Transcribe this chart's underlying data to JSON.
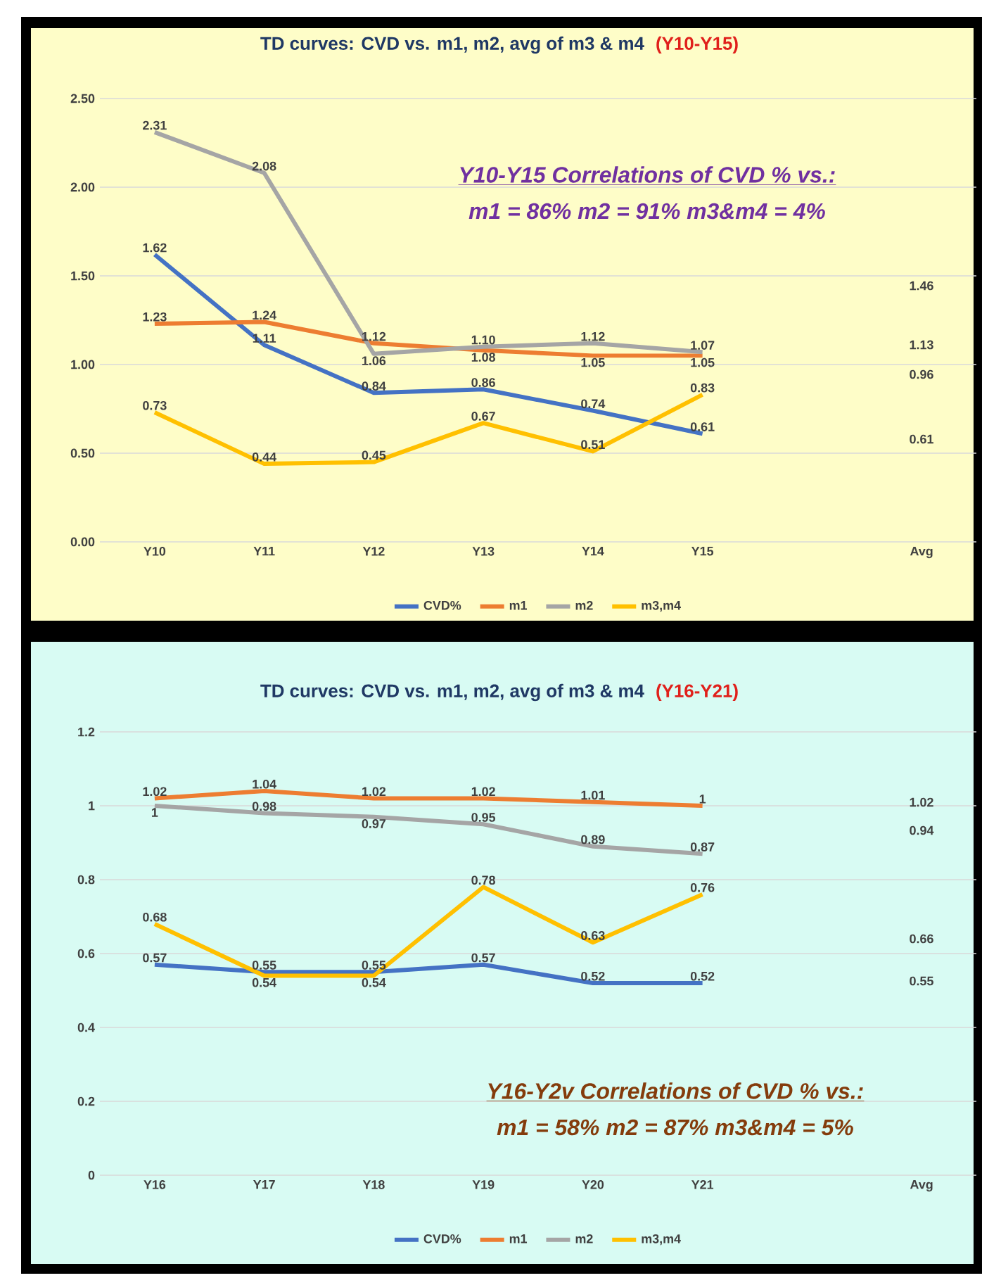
{
  "chart_data": [
    {
      "type": "line",
      "title": "TD curves:  CVD vs. m1, m2, avg of m3 & m4",
      "subtitle": "(Y10-Y15)",
      "categories": [
        "Y10",
        "Y11",
        "Y12",
        "Y13",
        "Y14",
        "Y15",
        null,
        "Avg"
      ],
      "series": [
        {
          "name": "CVD%",
          "color": "#4472c4",
          "values": [
            1.62,
            1.11,
            0.84,
            0.86,
            0.74,
            0.61,
            null,
            null
          ],
          "value_labels": [
            "1.62",
            "1.11",
            "0.84",
            "0.86",
            "0.74",
            "0.61",
            null,
            null
          ]
        },
        {
          "name": "m1",
          "color": "#ed7d31",
          "values": [
            1.23,
            1.24,
            1.12,
            1.08,
            1.05,
            1.05,
            null,
            null
          ],
          "value_labels": [
            "1.23",
            "1.24",
            "1.12",
            "1.08",
            "1.05",
            "1.05",
            null,
            null
          ]
        },
        {
          "name": "m2",
          "color": "#a5a5a5",
          "values": [
            2.31,
            2.08,
            1.06,
            1.1,
            1.12,
            1.07,
            null,
            null
          ],
          "value_labels": [
            "2.31",
            "2.08",
            "1.06",
            "1.10",
            "1.12",
            "1.07",
            null,
            null
          ]
        },
        {
          "name": "m3,m4",
          "color": "#ffc000",
          "values": [
            0.73,
            0.44,
            0.45,
            0.67,
            0.51,
            0.83,
            null,
            null
          ],
          "value_labels": [
            "0.73",
            "0.44",
            "0.45",
            "0.67",
            "0.51",
            "0.83",
            null,
            null
          ]
        }
      ],
      "ylim": [
        0,
        2.5
      ],
      "yticks": [
        {
          "value": 0,
          "label": "0.00"
        },
        {
          "value": 0.5,
          "label": "0.50"
        },
        {
          "value": 1,
          "label": "1.00"
        },
        {
          "value": 1.5,
          "label": "1.50"
        },
        {
          "value": 2,
          "label": "2.00"
        },
        {
          "value": 2.5,
          "label": "2.50"
        }
      ],
      "grid": "y",
      "legend": "bottom",
      "marker": "none",
      "line_style": "solid",
      "annotations": [
        "1.46",
        "1.13",
        "0.96",
        "0.61",
        "Y10-Y15 Correlations of CVD % vs.:",
        "m1 = 86%     m2 = 91%     m3&m4 = 4%"
      ]
    },
    {
      "type": "line",
      "title": "TD curves:  CVD vs. m1, m2, avg of m3 & m4",
      "subtitle": "(Y16-Y21)",
      "categories": [
        "Y16",
        "Y17",
        "Y18",
        "Y19",
        "Y20",
        "Y21",
        null,
        "Avg"
      ],
      "series": [
        {
          "name": "CVD%",
          "color": "#4472c4",
          "values": [
            0.57,
            0.55,
            0.55,
            0.57,
            0.52,
            0.52,
            null,
            null
          ],
          "value_labels": [
            "0.57",
            "0.55",
            "0.55",
            "0.57",
            "0.52",
            "0.52",
            null,
            null
          ]
        },
        {
          "name": "m1",
          "color": "#ed7d31",
          "values": [
            1.02,
            1.04,
            1.02,
            1.02,
            1.01,
            1,
            null,
            null
          ],
          "value_labels": [
            "1.02",
            "1.04",
            "1.02",
            "1.02",
            "1.01",
            "1",
            null,
            null
          ]
        },
        {
          "name": "m2",
          "color": "#a5a5a5",
          "values": [
            1,
            0.98,
            0.97,
            0.95,
            0.89,
            0.87,
            null,
            null
          ],
          "value_labels": [
            "1",
            "0.98",
            "0.97",
            "0.95",
            "0.89",
            "0.87",
            null,
            null
          ]
        },
        {
          "name": "m3,m4",
          "color": "#ffc000",
          "values": [
            0.68,
            0.54,
            0.54,
            0.78,
            0.63,
            0.76,
            null,
            null
          ],
          "value_labels": [
            "0.68",
            "0.54",
            "0.54",
            "0.78",
            "0.63",
            "0.76",
            null,
            null
          ]
        }
      ],
      "ylim": [
        0,
        1.2
      ],
      "yticks": [
        0,
        0.2,
        0.4,
        0.6,
        0.8,
        1,
        1.2
      ],
      "grid": "y",
      "legend": "bottom",
      "marker": "none",
      "line_style": "solid",
      "annotations": [
        "1.02",
        "0.94",
        "0.66",
        "0.55",
        "Y16-Y2v Correlations of CVD % vs.:",
        "m1 = 58%     m2 = 87%     m3&m4 = 5%"
      ]
    }
  ]
}
